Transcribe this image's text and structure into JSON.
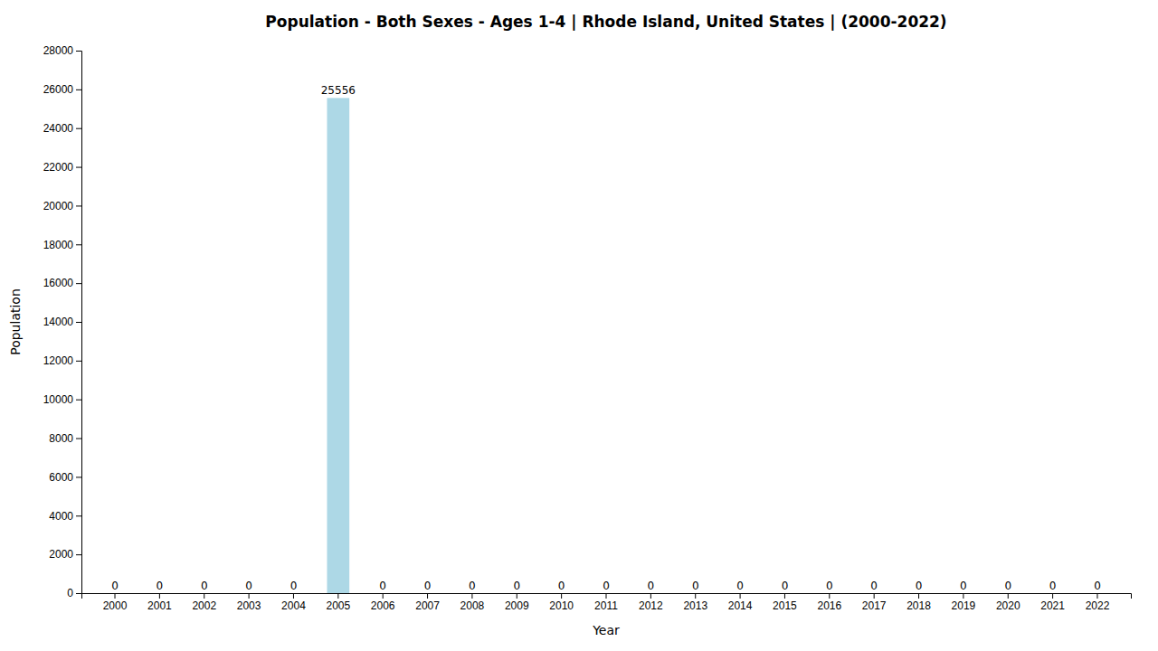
{
  "chart_data": {
    "type": "bar",
    "title": "Population - Both Sexes - Ages 1-4 | Rhode Island, United States |  (2000-2022)",
    "x_label": "Year",
    "y_label": "Population",
    "categories": [
      "2000",
      "2001",
      "2002",
      "2003",
      "2004",
      "2005",
      "2006",
      "2007",
      "2008",
      "2009",
      "2010",
      "2011",
      "2012",
      "2013",
      "2014",
      "2015",
      "2016",
      "2017",
      "2018",
      "2019",
      "2020",
      "2021",
      "2022"
    ],
    "values": [
      0,
      0,
      0,
      0,
      0,
      25556,
      0,
      0,
      0,
      0,
      0,
      0,
      0,
      0,
      0,
      0,
      0,
      0,
      0,
      0,
      0,
      0,
      0
    ],
    "color": "#ADD8E6",
    "ylim": [
      0,
      28000
    ],
    "yticks": [
      0,
      2000,
      4000,
      6000,
      8000,
      10000,
      12000,
      14000,
      16000,
      18000,
      20000,
      22000,
      24000,
      26000,
      28000
    ],
    "grid": false,
    "data_labels": true
  }
}
